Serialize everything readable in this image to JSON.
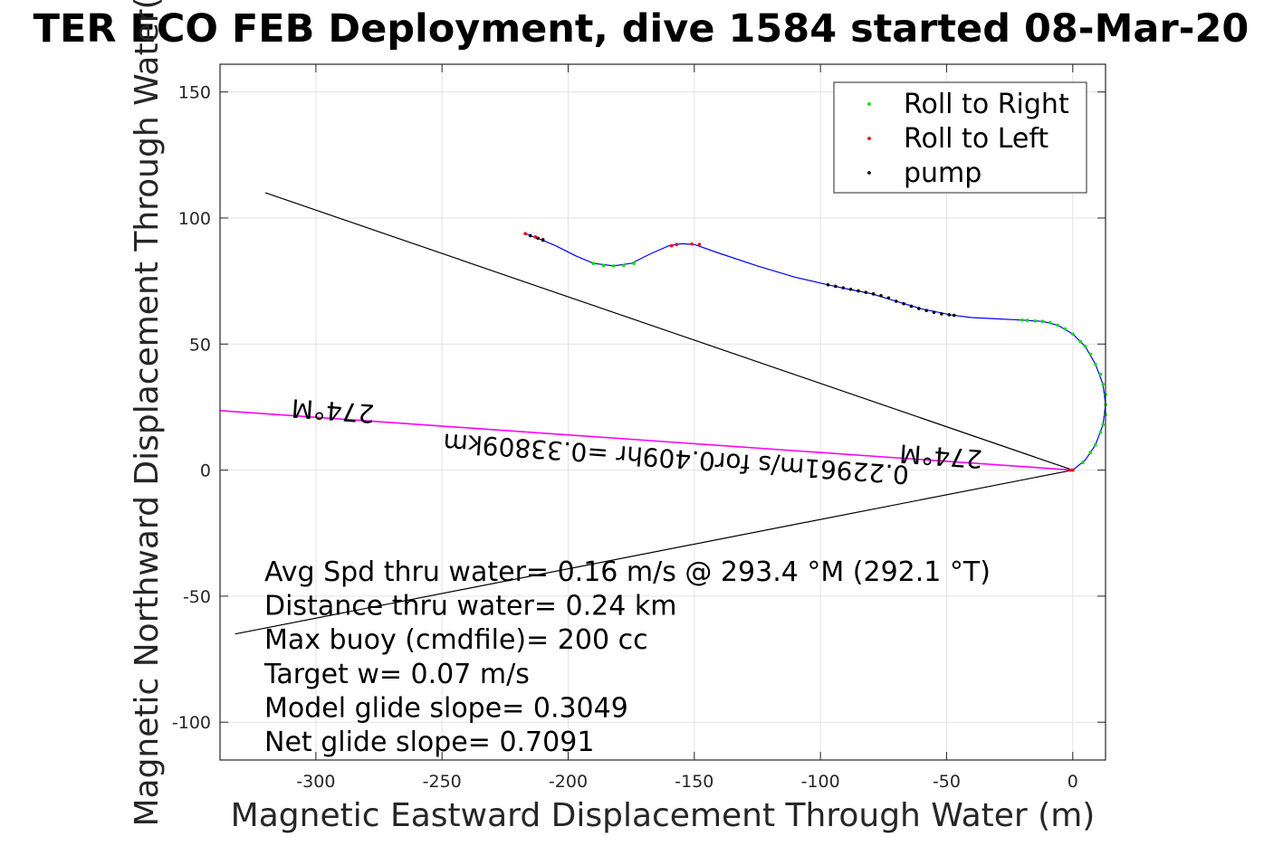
{
  "chart_data": {
    "type": "line",
    "title": "TER ECO FEB Deployment, dive 1584 started 08-Mar-20",
    "xlabel": "Magnetic Eastward Displacement Through Water (m)",
    "ylabel": "Magnetic Northward Displacement Through Water(",
    "xlim": [
      -338,
      13
    ],
    "ylim": [
      -115,
      161
    ],
    "xticks": [
      -300,
      -250,
      -200,
      -150,
      -100,
      -50,
      0
    ],
    "yticks": [
      -100,
      -50,
      0,
      50,
      100,
      150
    ],
    "xtick_labels": [
      "-300",
      "-250",
      "-200",
      "-150",
      "-100",
      "-50",
      "0"
    ],
    "ytick_labels": [
      "-100",
      "-50",
      "0",
      "50",
      "100",
      "150"
    ],
    "grid": true,
    "legend": {
      "placement": "top-right",
      "entries": [
        {
          "label": "Roll to Right",
          "color": "#00dd00"
        },
        {
          "label": "Roll to Left",
          "color": "#ff0000"
        },
        {
          "label": "pump",
          "color": "#000000"
        }
      ]
    },
    "track": {
      "color": "#0000ff",
      "points": [
        [
          0,
          0
        ],
        [
          5,
          4
        ],
        [
          9,
          10
        ],
        [
          12,
          18
        ],
        [
          13,
          26
        ],
        [
          12,
          34
        ],
        [
          9,
          42
        ],
        [
          5,
          49
        ],
        [
          0,
          54
        ],
        [
          -6,
          57.5
        ],
        [
          -12,
          59
        ],
        [
          -20,
          59.5
        ],
        [
          -30,
          60
        ],
        [
          -40,
          60.5
        ],
        [
          -48,
          61.5
        ],
        [
          -60,
          64
        ],
        [
          -70,
          67
        ],
        [
          -80,
          70
        ],
        [
          -90,
          72
        ],
        [
          -97,
          73.5
        ],
        [
          -110,
          76.5
        ],
        [
          -125,
          81
        ],
        [
          -140,
          86
        ],
        [
          -150,
          89.5
        ],
        [
          -155,
          89.8
        ],
        [
          -160,
          89
        ],
        [
          -167,
          86
        ],
        [
          -175,
          82
        ],
        [
          -182,
          81
        ],
        [
          -190,
          82
        ],
        [
          -197,
          85
        ],
        [
          -205,
          89
        ],
        [
          -211,
          91.5
        ],
        [
          -215,
          93
        ],
        [
          -217,
          93.8
        ]
      ]
    },
    "roll_right_points": [
      [
        0,
        0
      ],
      [
        4,
        3
      ],
      [
        7,
        7
      ],
      [
        9,
        10
      ],
      [
        11,
        15
      ],
      [
        12,
        18
      ],
      [
        13,
        22
      ],
      [
        13,
        26
      ],
      [
        13,
        30
      ],
      [
        12,
        34
      ],
      [
        11,
        38
      ],
      [
        9,
        42
      ],
      [
        7,
        46
      ],
      [
        5,
        49
      ],
      [
        3,
        51
      ],
      [
        0,
        54
      ],
      [
        -3,
        56
      ],
      [
        -6,
        57.5
      ],
      [
        -9,
        58.5
      ],
      [
        -12,
        59
      ],
      [
        -15,
        59.2
      ],
      [
        -18,
        59.4
      ],
      [
        -20,
        59.5
      ],
      [
        -174,
        82
      ],
      [
        -178,
        81.2
      ],
      [
        -182,
        81
      ],
      [
        -186,
        81.2
      ],
      [
        -190,
        82
      ]
    ],
    "roll_left_points": [
      [
        0,
        0
      ],
      [
        -1,
        0
      ],
      [
        -159,
        89
      ],
      [
        -157,
        89.5
      ],
      [
        -151,
        89.7
      ],
      [
        -148,
        89.5
      ],
      [
        -210,
        91.5
      ],
      [
        -213,
        92.5
      ],
      [
        -217,
        93.8
      ]
    ],
    "pump_points": [
      [
        -97,
        73.5
      ],
      [
        -94,
        72.9
      ],
      [
        -91,
        72.3
      ],
      [
        -88,
        71.7
      ],
      [
        -85,
        71.1
      ],
      [
        -82,
        70.5
      ],
      [
        -79,
        69.9
      ],
      [
        -76,
        69.2
      ],
      [
        -73,
        68.3
      ],
      [
        -70,
        67
      ],
      [
        -67,
        66
      ],
      [
        -64,
        65
      ],
      [
        -61,
        64.1
      ],
      [
        -58,
        63.3
      ],
      [
        -55,
        62.6
      ],
      [
        -52,
        62
      ],
      [
        -49,
        61.6
      ],
      [
        -47,
        61.4
      ],
      [
        -215,
        93
      ],
      [
        -212,
        92
      ],
      [
        -210,
        91.2
      ]
    ],
    "lines": [
      {
        "name": "black-upper",
        "color": "#000000",
        "from": [
          0,
          0
        ],
        "to": [
          -320,
          110
        ]
      },
      {
        "name": "black-lower",
        "color": "#000000",
        "from": [
          0,
          0
        ],
        "to": [
          -332,
          -65
        ]
      },
      {
        "name": "heading-magenta",
        "color": "#ff00ff",
        "from": [
          0,
          0
        ],
        "to": [
          -338,
          23.6
        ]
      }
    ],
    "arrow_labels": [
      {
        "text": "274°M",
        "x": -293,
        "y": 27,
        "rotate": 184
      },
      {
        "text": "274°M",
        "x": -52,
        "y": 9,
        "rotate": 184
      },
      {
        "text": "0.22961m/s for0.409hr =0.33809km",
        "x": -157,
        "y": 8,
        "rotate": 184
      }
    ],
    "stats": [
      "Avg Spd thru water=  0.16 m/s @ 293.4 °M (292.1 °T)",
      "Distance thru water=  0.24 km",
      "Max buoy (cmdfile)= 200 cc",
      "Target w= 0.07 m/s",
      "Model glide slope= 0.3049",
      "Net glide slope= 0.7091"
    ]
  }
}
